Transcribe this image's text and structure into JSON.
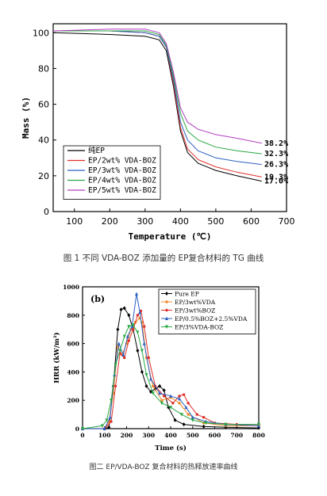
{
  "captions": {
    "fig1": "图 1 不同 VDA-BOZ 添加量的 EP复合材料的 TG 曲线",
    "fig2": "图二 EP/VDA-BOZ 复合材料的热释放速率曲线"
  },
  "chart_data": [
    {
      "type": "line",
      "title": "",
      "xlabel": "Temperature (℃)",
      "ylabel": "Mass (%)",
      "xlim": [
        40,
        700
      ],
      "ylim": [
        0,
        105
      ],
      "xticks": [
        100,
        200,
        300,
        400,
        500,
        600,
        700
      ],
      "yticks": [
        0,
        20,
        40,
        60,
        80,
        100
      ],
      "legend_position": "bottom-left",
      "series": [
        {
          "name": "纯EP",
          "color": "#000000",
          "final": "17.0%",
          "points": [
            [
              40,
              100
            ],
            [
              200,
              99
            ],
            [
              300,
              98
            ],
            [
              340,
              96
            ],
            [
              360,
              90
            ],
            [
              380,
              70
            ],
            [
              400,
              45
            ],
            [
              420,
              33
            ],
            [
              450,
              27
            ],
            [
              500,
              23
            ],
            [
              560,
              20
            ],
            [
              630,
              17.0
            ]
          ]
        },
        {
          "name": "EP/2wt% VDA-BOZ",
          "color": "#e0302a",
          "final": "19.3%",
          "points": [
            [
              40,
              101
            ],
            [
              200,
              101
            ],
            [
              300,
              100
            ],
            [
              340,
              98
            ],
            [
              360,
              92
            ],
            [
              380,
              72
            ],
            [
              400,
              47
            ],
            [
              420,
              35
            ],
            [
              450,
              29
            ],
            [
              500,
              25
            ],
            [
              560,
              22
            ],
            [
              630,
              19.3
            ]
          ]
        },
        {
          "name": "EP/3wt% VDA-BOZ",
          "color": "#2b5fc2",
          "final": "26.3%",
          "points": [
            [
              40,
              101
            ],
            [
              200,
              101
            ],
            [
              300,
              100
            ],
            [
              340,
              98
            ],
            [
              360,
              92
            ],
            [
              380,
              74
            ],
            [
              400,
              50
            ],
            [
              420,
              40
            ],
            [
              450,
              34
            ],
            [
              500,
              30
            ],
            [
              560,
              28
            ],
            [
              630,
              26.3
            ]
          ]
        },
        {
          "name": "EP/4wt% VDA-BOZ",
          "color": "#27a843",
          "final": "32.3%",
          "points": [
            [
              40,
              101
            ],
            [
              200,
              101
            ],
            [
              300,
              101
            ],
            [
              340,
              99
            ],
            [
              360,
              93
            ],
            [
              380,
              76
            ],
            [
              400,
              55
            ],
            [
              420,
              45
            ],
            [
              450,
              40
            ],
            [
              500,
              36
            ],
            [
              560,
              34
            ],
            [
              630,
              32.3
            ]
          ]
        },
        {
          "name": "EP/5wt% VDA-BOZ",
          "color": "#b23fc0",
          "final": "38.2%",
          "points": [
            [
              40,
              101
            ],
            [
              200,
              102
            ],
            [
              300,
              102
            ],
            [
              340,
              100
            ],
            [
              360,
              94
            ],
            [
              380,
              78
            ],
            [
              400,
              58
            ],
            [
              420,
              50
            ],
            [
              450,
              46
            ],
            [
              500,
              43
            ],
            [
              560,
              41
            ],
            [
              630,
              38.2
            ]
          ]
        }
      ]
    },
    {
      "type": "line",
      "panel_label": "(b)",
      "xlabel": "Time (s)",
      "ylabel": "HRR (kW/m²)",
      "xlim": [
        0,
        800
      ],
      "ylim": [
        0,
        1000
      ],
      "xticks": [
        0,
        100,
        200,
        300,
        400,
        500,
        600,
        700,
        800
      ],
      "yticks": [
        0,
        200,
        400,
        600,
        800,
        1000
      ],
      "legend_position": "top-right",
      "series": [
        {
          "name": "Pure EP",
          "color": "#000000",
          "marker": "diamond",
          "points": [
            [
              0,
              0
            ],
            [
              100,
              0
            ],
            [
              120,
              10
            ],
            [
              140,
              300
            ],
            [
              160,
              700
            ],
            [
              175,
              840
            ],
            [
              190,
              850
            ],
            [
              210,
              800
            ],
            [
              230,
              700
            ],
            [
              250,
              550
            ],
            [
              270,
              400
            ],
            [
              290,
              300
            ],
            [
              310,
              260
            ],
            [
              330,
              280
            ],
            [
              350,
              300
            ],
            [
              370,
              270
            ],
            [
              390,
              150
            ],
            [
              420,
              60
            ],
            [
              460,
              30
            ],
            [
              550,
              15
            ],
            [
              650,
              10
            ],
            [
              800,
              5
            ]
          ]
        },
        {
          "name": "EP/3wt%VDA",
          "color": "#f08a24",
          "marker": "circle",
          "points": [
            [
              0,
              0
            ],
            [
              100,
              0
            ],
            [
              120,
              50
            ],
            [
              140,
              250
            ],
            [
              160,
              580
            ],
            [
              180,
              520
            ],
            [
              200,
              600
            ],
            [
              220,
              700
            ],
            [
              240,
              750
            ],
            [
              260,
              780
            ],
            [
              270,
              750
            ],
            [
              290,
              500
            ],
            [
              320,
              300
            ],
            [
              360,
              200
            ],
            [
              400,
              220
            ],
            [
              440,
              180
            ],
            [
              480,
              100
            ],
            [
              550,
              40
            ],
            [
              650,
              20
            ],
            [
              800,
              20
            ]
          ]
        },
        {
          "name": "EP/3wt%BOZ",
          "color": "#e0302a",
          "marker": "circle",
          "points": [
            [
              0,
              0
            ],
            [
              100,
              0
            ],
            [
              130,
              50
            ],
            [
              150,
              300
            ],
            [
              170,
              530
            ],
            [
              190,
              500
            ],
            [
              210,
              620
            ],
            [
              230,
              700
            ],
            [
              250,
              800
            ],
            [
              265,
              830
            ],
            [
              280,
              720
            ],
            [
              300,
              500
            ],
            [
              330,
              300
            ],
            [
              370,
              230
            ],
            [
              410,
              180
            ],
            [
              440,
              230
            ],
            [
              460,
              240
            ],
            [
              480,
              180
            ],
            [
              520,
              100
            ],
            [
              550,
              80
            ],
            [
              600,
              40
            ],
            [
              700,
              30
            ],
            [
              800,
              30
            ]
          ]
        },
        {
          "name": "EP/0.5%BOZ+2.5%VDA",
          "color": "#2b5fc2",
          "marker": "triangle",
          "points": [
            [
              0,
              0
            ],
            [
              100,
              0
            ],
            [
              125,
              80
            ],
            [
              145,
              380
            ],
            [
              165,
              600
            ],
            [
              185,
              520
            ],
            [
              205,
              650
            ],
            [
              225,
              720
            ],
            [
              245,
              950
            ],
            [
              260,
              820
            ],
            [
              280,
              600
            ],
            [
              310,
              350
            ],
            [
              350,
              250
            ],
            [
              400,
              230
            ],
            [
              440,
              210
            ],
            [
              470,
              150
            ],
            [
              500,
              80
            ],
            [
              560,
              50
            ],
            [
              650,
              30
            ],
            [
              800,
              20
            ]
          ]
        },
        {
          "name": "EP/3%VDA-BOZ",
          "color": "#27a843",
          "marker": "triangle-down",
          "points": [
            [
              0,
              0
            ],
            [
              90,
              20
            ],
            [
              110,
              60
            ],
            [
              130,
              200
            ],
            [
              150,
              450
            ],
            [
              170,
              550
            ],
            [
              190,
              650
            ],
            [
              210,
              720
            ],
            [
              230,
              730
            ],
            [
              250,
              680
            ],
            [
              270,
              550
            ],
            [
              290,
              380
            ],
            [
              320,
              250
            ],
            [
              360,
              180
            ],
            [
              400,
              150
            ],
            [
              450,
              100
            ],
            [
              500,
              60
            ],
            [
              560,
              40
            ],
            [
              650,
              30
            ],
            [
              800,
              30
            ]
          ]
        }
      ]
    }
  ]
}
